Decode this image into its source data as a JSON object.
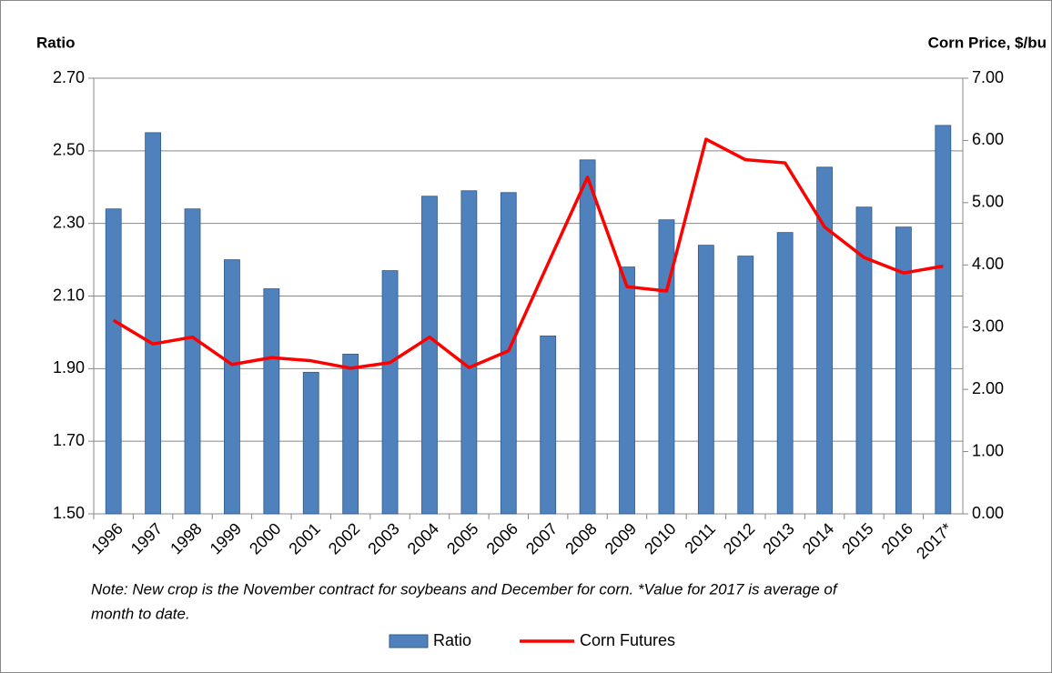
{
  "chart_data": {
    "type": "bar_line",
    "y_label": "Ratio",
    "y2_label": "Corn Price, $/bu",
    "categories": [
      "1996",
      "1997",
      "1998",
      "1999",
      "2000",
      "2001",
      "2002",
      "2003",
      "2004",
      "2005",
      "2006",
      "2007",
      "2008",
      "2009",
      "2010",
      "2011",
      "2012",
      "2013",
      "2014",
      "2015",
      "2016",
      "2017*"
    ],
    "series": [
      {
        "name": "Ratio",
        "type": "bar",
        "color": "#4f81bd",
        "values": [
          2.34,
          2.55,
          2.34,
          2.2,
          2.12,
          1.89,
          1.94,
          2.17,
          2.375,
          2.39,
          2.385,
          1.99,
          2.475,
          2.18,
          2.31,
          2.24,
          2.21,
          2.275,
          2.455,
          2.345,
          2.29,
          2.57
        ]
      },
      {
        "name": "Corn Futures",
        "type": "line",
        "axis": "y2",
        "color": "#ff0000",
        "values": [
          3.11,
          2.73,
          2.84,
          2.4,
          2.51,
          2.46,
          2.34,
          2.43,
          2.84,
          2.35,
          2.62,
          4.02,
          5.41,
          3.65,
          3.58,
          6.02,
          5.69,
          5.64,
          4.61,
          4.12,
          3.87,
          3.98
        ]
      }
    ],
    "ylim": [
      1.5,
      2.7
    ],
    "yticks": [
      {
        "value": 1.5,
        "label": "1.50"
      },
      {
        "value": 1.7,
        "label": "1.70"
      },
      {
        "value": 1.9,
        "label": "1.90"
      },
      {
        "value": 2.1,
        "label": "2.10"
      },
      {
        "value": 2.3,
        "label": "2.30"
      },
      {
        "value": 2.5,
        "label": "2.50"
      },
      {
        "value": 2.7,
        "label": "2.70"
      }
    ],
    "y2lim": [
      0,
      7
    ],
    "y2ticks": [
      {
        "value": 0,
        "label": "0.00"
      },
      {
        "value": 1,
        "label": "1.00"
      },
      {
        "value": 2,
        "label": "2.00"
      },
      {
        "value": 3,
        "label": "3.00"
      },
      {
        "value": 4,
        "label": "4.00"
      },
      {
        "value": 5,
        "label": "5.00"
      },
      {
        "value": 6,
        "label": "6.00"
      },
      {
        "value": 7,
        "label": "7.00"
      }
    ],
    "grid": true,
    "note": [
      "Note: New crop is the November contract for soybeans and December for corn. *Value for 2017 is average of",
      "month to date."
    ],
    "legend": "bottom"
  }
}
